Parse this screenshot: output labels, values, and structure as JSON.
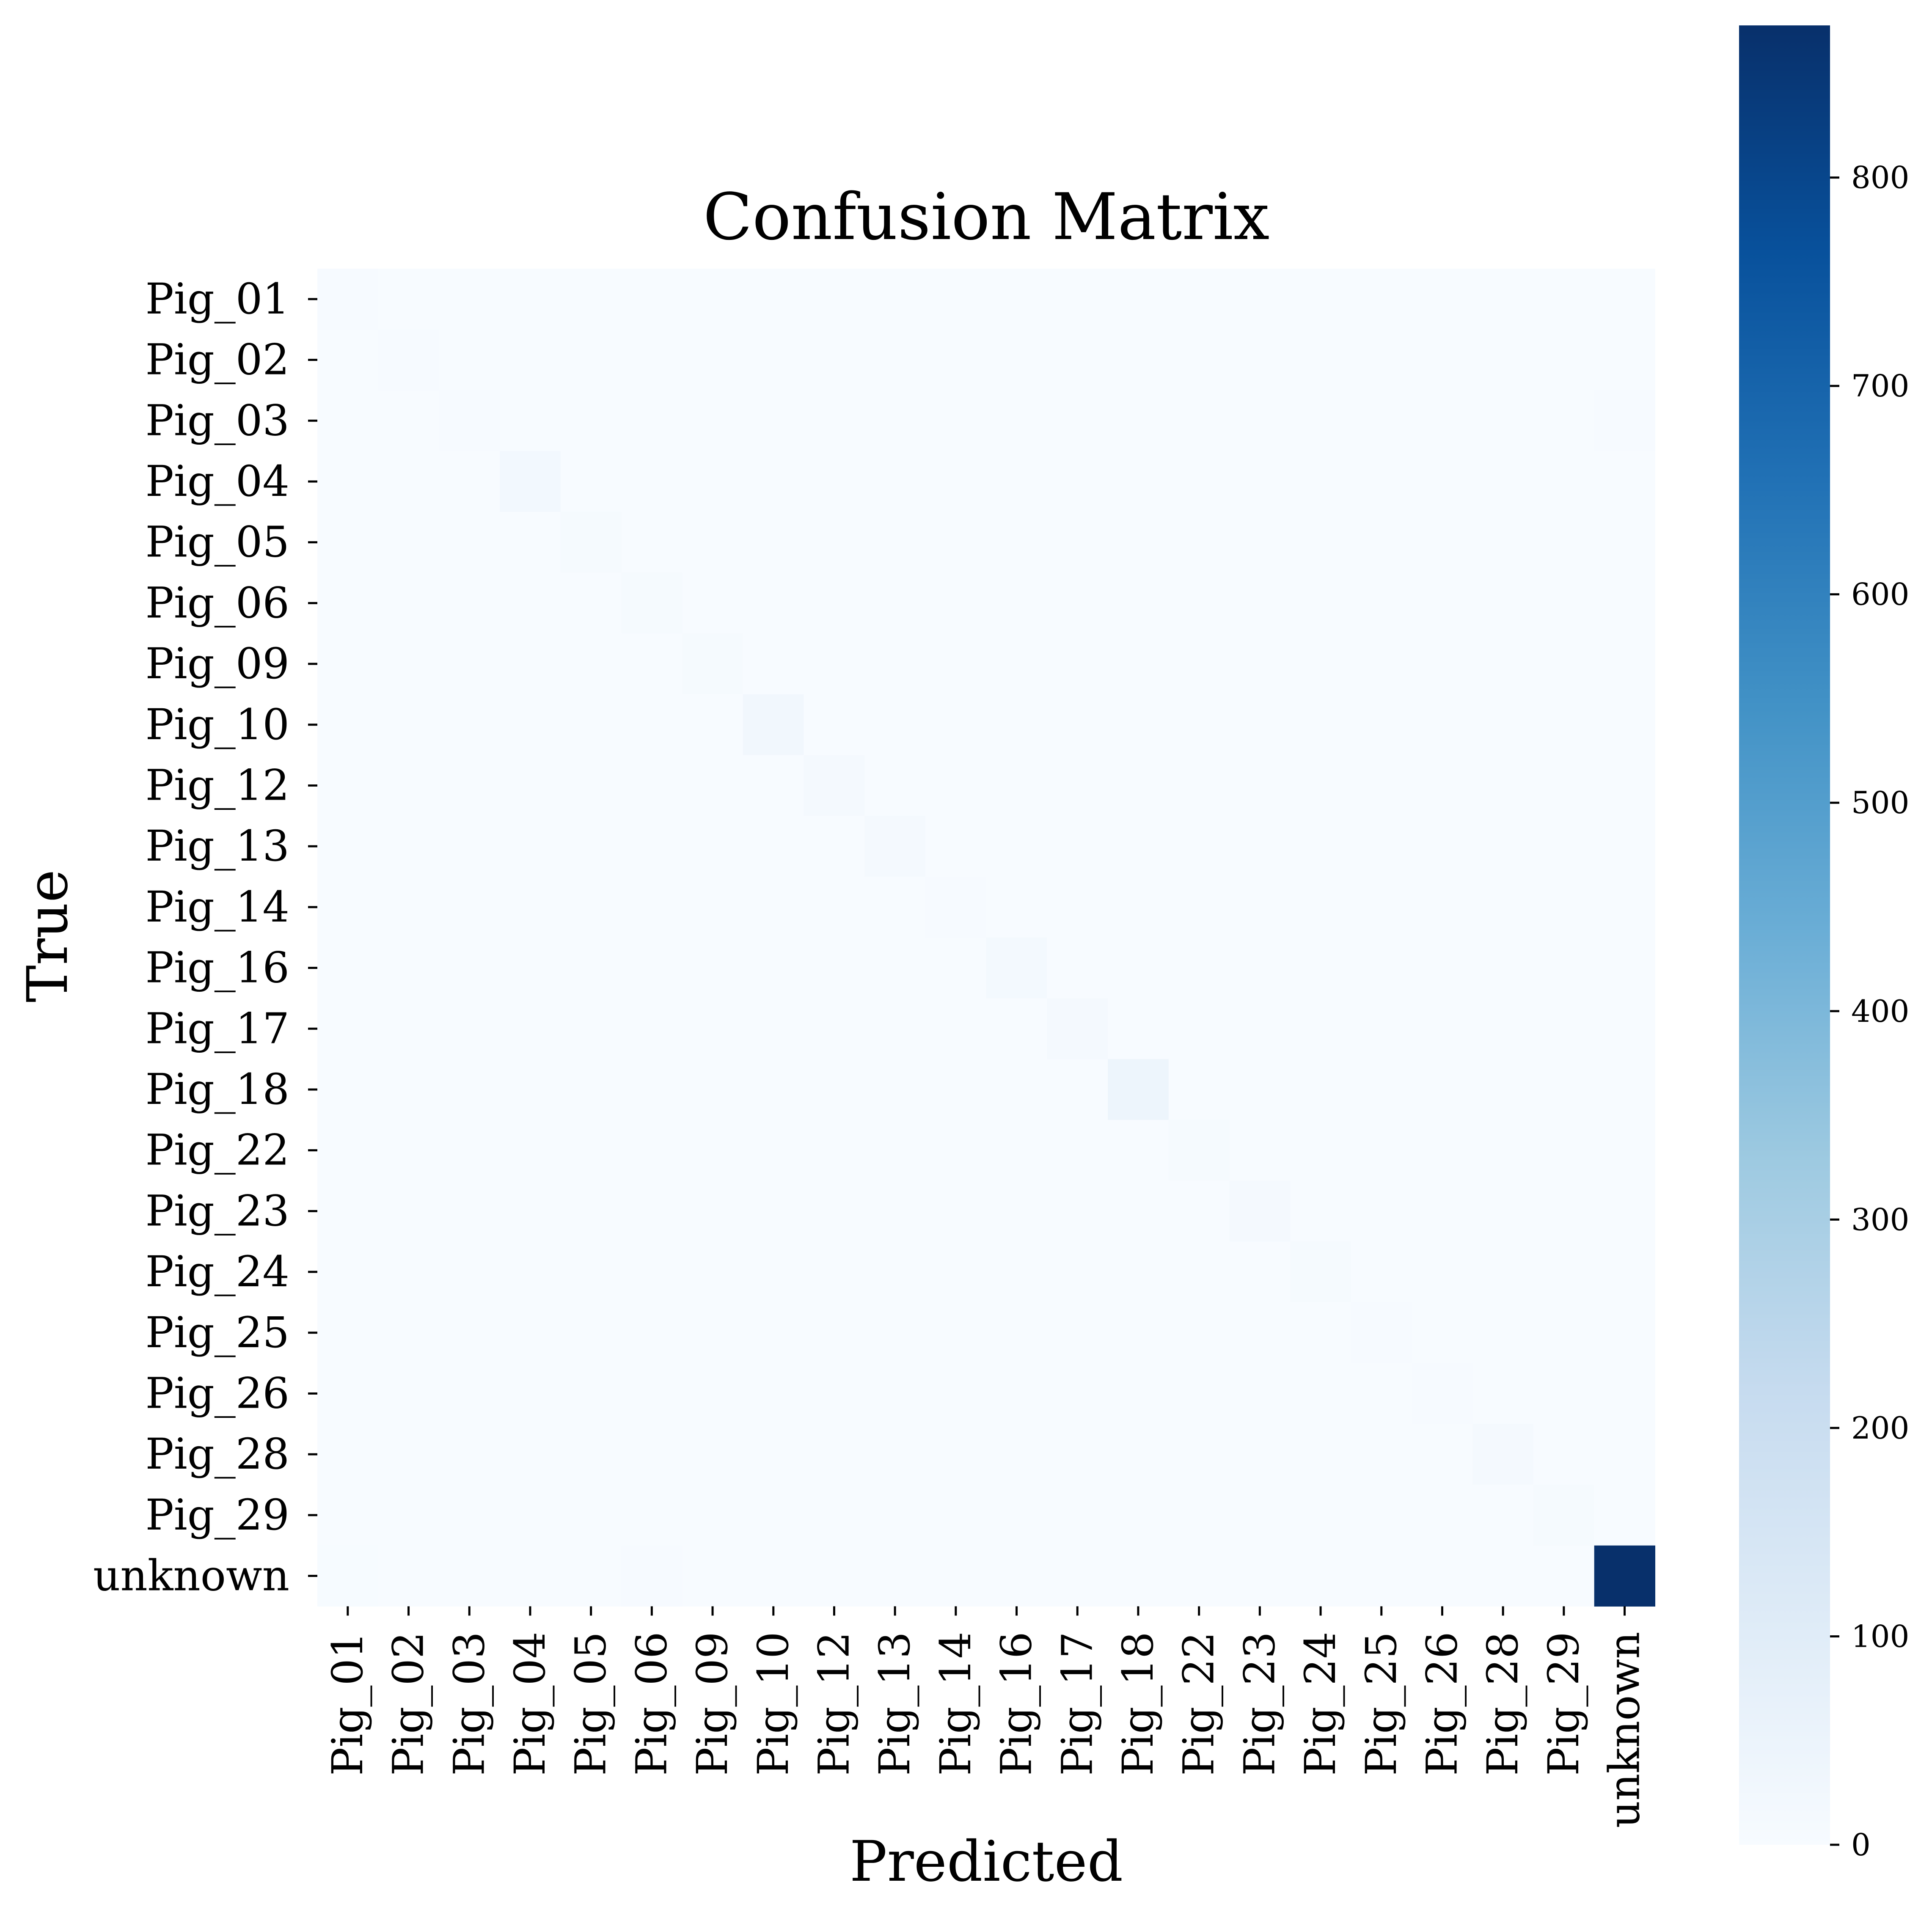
{
  "chart_data": {
    "type": "heatmap",
    "title": "Confusion Matrix",
    "xlabel": "Predicted",
    "ylabel": "True",
    "colormap": "Blues",
    "colormap_stops": [
      "#f7fbff",
      "#deebf7",
      "#c6dbef",
      "#9ecae1",
      "#6baed6",
      "#4292c6",
      "#2171b5",
      "#08519c",
      "#08306b"
    ],
    "x_categories": [
      "Pig_01",
      "Pig_02",
      "Pig_03",
      "Pig_04",
      "Pig_05",
      "Pig_06",
      "Pig_09",
      "Pig_10",
      "Pig_12",
      "Pig_13",
      "Pig_14",
      "Pig_16",
      "Pig_17",
      "Pig_18",
      "Pig_22",
      "Pig_23",
      "Pig_24",
      "Pig_25",
      "Pig_26",
      "Pig_28",
      "Pig_29",
      "unknown"
    ],
    "y_categories": [
      "Pig_01",
      "Pig_02",
      "Pig_03",
      "Pig_04",
      "Pig_05",
      "Pig_06",
      "Pig_09",
      "Pig_10",
      "Pig_12",
      "Pig_13",
      "Pig_14",
      "Pig_16",
      "Pig_17",
      "Pig_18",
      "Pig_22",
      "Pig_23",
      "Pig_24",
      "Pig_25",
      "Pig_26",
      "Pig_28",
      "Pig_29",
      "unknown"
    ],
    "values": [
      [
        4,
        0,
        0,
        0,
        0,
        0,
        0,
        0,
        0,
        0,
        0,
        0,
        0,
        0,
        0,
        0,
        0,
        0,
        0,
        0,
        0,
        1
      ],
      [
        0,
        4,
        0,
        0,
        0,
        0,
        0,
        0,
        0,
        0,
        0,
        0,
        0,
        0,
        0,
        0,
        0,
        0,
        0,
        0,
        0,
        1
      ],
      [
        0,
        0,
        4,
        0,
        0,
        0,
        0,
        0,
        0,
        0,
        0,
        0,
        0,
        0,
        0,
        0,
        0,
        0,
        0,
        0,
        0,
        4
      ],
      [
        0,
        0,
        0,
        20,
        0,
        0,
        0,
        0,
        0,
        0,
        0,
        0,
        0,
        0,
        0,
        0,
        0,
        0,
        0,
        0,
        0,
        1
      ],
      [
        0,
        0,
        0,
        0,
        8,
        0,
        0,
        0,
        0,
        0,
        0,
        0,
        0,
        0,
        0,
        0,
        0,
        0,
        0,
        0,
        0,
        1
      ],
      [
        0,
        0,
        0,
        0,
        0,
        10,
        0,
        0,
        0,
        0,
        0,
        0,
        0,
        0,
        0,
        0,
        0,
        0,
        0,
        0,
        0,
        1
      ],
      [
        0,
        0,
        0,
        0,
        0,
        0,
        8,
        0,
        0,
        0,
        0,
        0,
        0,
        0,
        0,
        0,
        0,
        0,
        0,
        0,
        0,
        2
      ],
      [
        0,
        0,
        0,
        0,
        0,
        0,
        0,
        28,
        0,
        0,
        0,
        0,
        0,
        0,
        0,
        0,
        0,
        0,
        0,
        0,
        0,
        1
      ],
      [
        0,
        0,
        0,
        0,
        0,
        0,
        0,
        0,
        14,
        0,
        0,
        0,
        0,
        0,
        0,
        0,
        0,
        0,
        0,
        0,
        0,
        1
      ],
      [
        0,
        0,
        0,
        0,
        0,
        0,
        0,
        0,
        0,
        14,
        0,
        0,
        0,
        0,
        0,
        0,
        0,
        0,
        0,
        0,
        0,
        1
      ],
      [
        0,
        0,
        0,
        0,
        0,
        0,
        0,
        0,
        0,
        0,
        6,
        0,
        0,
        0,
        0,
        0,
        0,
        0,
        0,
        0,
        0,
        1
      ],
      [
        0,
        0,
        0,
        0,
        0,
        0,
        0,
        0,
        0,
        0,
        0,
        16,
        0,
        0,
        0,
        0,
        0,
        0,
        0,
        0,
        0,
        1
      ],
      [
        0,
        0,
        0,
        0,
        0,
        0,
        0,
        0,
        0,
        0,
        0,
        0,
        14,
        0,
        0,
        0,
        0,
        0,
        0,
        0,
        0,
        1
      ],
      [
        0,
        0,
        0,
        0,
        0,
        0,
        0,
        0,
        0,
        0,
        0,
        0,
        0,
        42,
        0,
        0,
        0,
        0,
        0,
        0,
        0,
        1
      ],
      [
        0,
        0,
        0,
        0,
        0,
        0,
        0,
        0,
        0,
        0,
        0,
        0,
        0,
        0,
        8,
        0,
        0,
        0,
        0,
        0,
        0,
        1
      ],
      [
        0,
        0,
        0,
        0,
        0,
        0,
        0,
        0,
        0,
        0,
        0,
        0,
        0,
        0,
        0,
        12,
        0,
        0,
        0,
        0,
        0,
        1
      ],
      [
        0,
        0,
        0,
        0,
        0,
        0,
        0,
        0,
        0,
        0,
        0,
        0,
        0,
        0,
        0,
        0,
        8,
        0,
        0,
        0,
        0,
        1
      ],
      [
        0,
        0,
        0,
        0,
        0,
        0,
        0,
        0,
        0,
        0,
        0,
        0,
        0,
        0,
        0,
        0,
        0,
        5,
        0,
        0,
        0,
        1
      ],
      [
        0,
        0,
        0,
        0,
        0,
        0,
        0,
        0,
        0,
        0,
        0,
        0,
        0,
        0,
        0,
        0,
        0,
        0,
        5,
        0,
        0,
        1
      ],
      [
        0,
        0,
        0,
        0,
        0,
        0,
        0,
        0,
        0,
        0,
        0,
        0,
        0,
        0,
        0,
        0,
        0,
        0,
        0,
        12,
        0,
        1
      ],
      [
        0,
        0,
        0,
        0,
        0,
        0,
        0,
        0,
        0,
        0,
        0,
        0,
        0,
        0,
        0,
        0,
        0,
        0,
        0,
        0,
        8,
        1
      ],
      [
        3,
        2,
        2,
        2,
        2,
        5,
        2,
        2,
        2,
        2,
        2,
        2,
        2,
        2,
        2,
        2,
        2,
        2,
        2,
        2,
        2,
        873
      ]
    ],
    "colorbar": {
      "vmin": 0,
      "vmax": 873,
      "ticks": [
        0,
        100,
        200,
        300,
        400,
        500,
        600,
        700,
        800
      ]
    }
  }
}
